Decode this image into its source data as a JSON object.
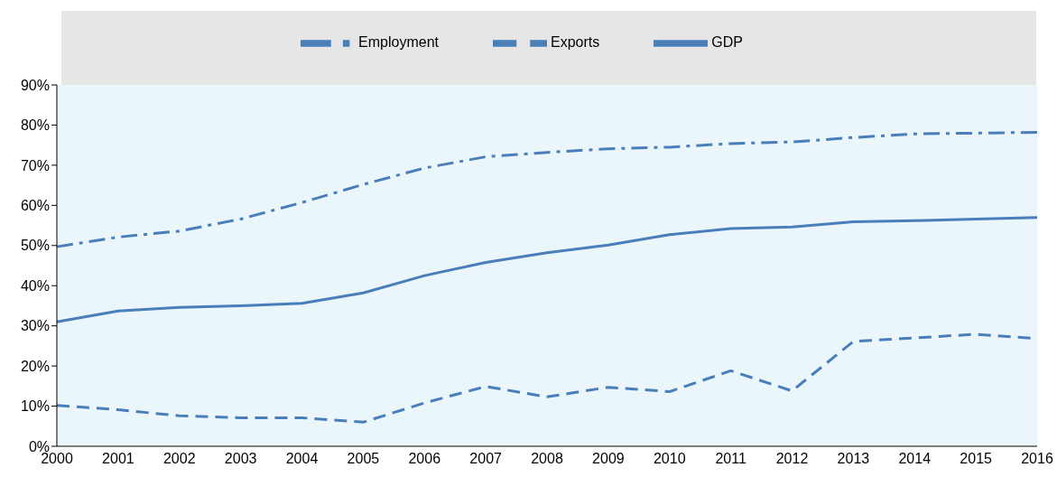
{
  "chart_data": {
    "type": "line",
    "categories": [
      "2000",
      "2001",
      "2002",
      "2003",
      "2004",
      "2005",
      "2006",
      "2007",
      "2008",
      "2009",
      "2010",
      "2011",
      "2012",
      "2013",
      "2014",
      "2015",
      "2016"
    ],
    "series": [
      {
        "name": "GDP",
        "color": "#4a7ebb",
        "line_style": "solid",
        "values": [
          31.0,
          33.7,
          34.6,
          35.0,
          35.6,
          38.2,
          42.5,
          45.8,
          48.2,
          50.1,
          52.7,
          54.2,
          54.6,
          55.9,
          56.2,
          56.6,
          57.0
        ]
      },
      {
        "name": "Exports",
        "color": "#4a7ebb",
        "line_style": "dashed",
        "values": [
          10.2,
          9.1,
          7.6,
          7.1,
          7.1,
          6.0,
          10.8,
          14.9,
          12.3,
          14.7,
          13.6,
          18.8,
          13.8,
          26.1,
          27.0,
          27.9,
          26.8
        ]
      },
      {
        "name": "Employment",
        "color": "#4a7ebb",
        "line_style": "dashdot",
        "values": [
          49.7,
          52.1,
          53.6,
          56.6,
          60.7,
          65.2,
          69.3,
          72.1,
          73.2,
          74.1,
          74.5,
          75.4,
          75.8,
          76.9,
          77.8,
          78.0,
          78.2
        ]
      }
    ],
    "ylim": [
      0,
      90
    ],
    "yticks": [
      {
        "value": 0,
        "label": "0%"
      },
      {
        "value": 10,
        "label": "10%"
      },
      {
        "value": 20,
        "label": "20%"
      },
      {
        "value": 30,
        "label": "30%"
      },
      {
        "value": 40,
        "label": "40%"
      },
      {
        "value": 50,
        "label": "50%"
      },
      {
        "value": 60,
        "label": "60%"
      },
      {
        "value": 70,
        "label": "70%"
      },
      {
        "value": 80,
        "label": "80%"
      },
      {
        "value": 90,
        "label": "90%"
      }
    ],
    "grid": false,
    "legend": "top",
    "marker": "none"
  }
}
